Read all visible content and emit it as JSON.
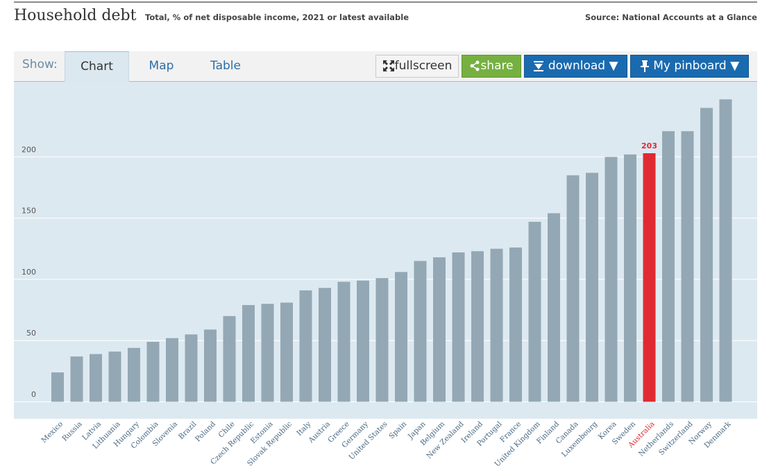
{
  "header": {
    "title": "Household debt",
    "subtitle": "Total, % of net disposable income, 2021 or latest available",
    "source": "Source: National Accounts at a Glance"
  },
  "toolbar": {
    "show_label": "Show:",
    "tabs": [
      {
        "label": "Chart",
        "active": true
      },
      {
        "label": "Map",
        "active": false
      },
      {
        "label": "Table",
        "active": false
      }
    ],
    "fullscreen_label": "fullscreen",
    "share_label": "share",
    "download_label": "download ▼",
    "pinboard_label": "My pinboard ▼"
  },
  "colors": {
    "bar": "#93a8b4",
    "highlight": "#e02a31",
    "plot_bg": "#dde9f1",
    "grid": "#ffffff",
    "tick_text": "#555555",
    "category_text": "#4a6a85"
  },
  "chart_data": {
    "type": "bar",
    "grid": true,
    "ylim": [
      0,
      250
    ],
    "yticks": [
      0,
      50,
      100,
      150,
      200
    ],
    "highlight_category": "Australia",
    "highlight_label": "203",
    "categories": [
      "Mexico",
      "Russia",
      "Latvia",
      "Lithuania",
      "Hungary",
      "Colombia",
      "Slovenia",
      "Brazil",
      "Poland",
      "Chile",
      "Czech Republic",
      "Estonia",
      "Slovak Republic",
      "Italy",
      "Austria",
      "Greece",
      "Germany",
      "United States",
      "Spain",
      "Japan",
      "Belgium",
      "New Zealand",
      "Ireland",
      "Portugal",
      "France",
      "United Kingdom",
      "Finland",
      "Canada",
      "Luxembourg",
      "Korea",
      "Sweden",
      "Australia",
      "Netherlands",
      "Switzerland",
      "Norway",
      "Denmark"
    ],
    "values": [
      24,
      37,
      39,
      41,
      44,
      49,
      52,
      55,
      59,
      70,
      79,
      80,
      81,
      91,
      93,
      98,
      99,
      101,
      106,
      115,
      118,
      122,
      123,
      125,
      126,
      147,
      154,
      185,
      187,
      200,
      202,
      203,
      221,
      221,
      240,
      247
    ]
  }
}
